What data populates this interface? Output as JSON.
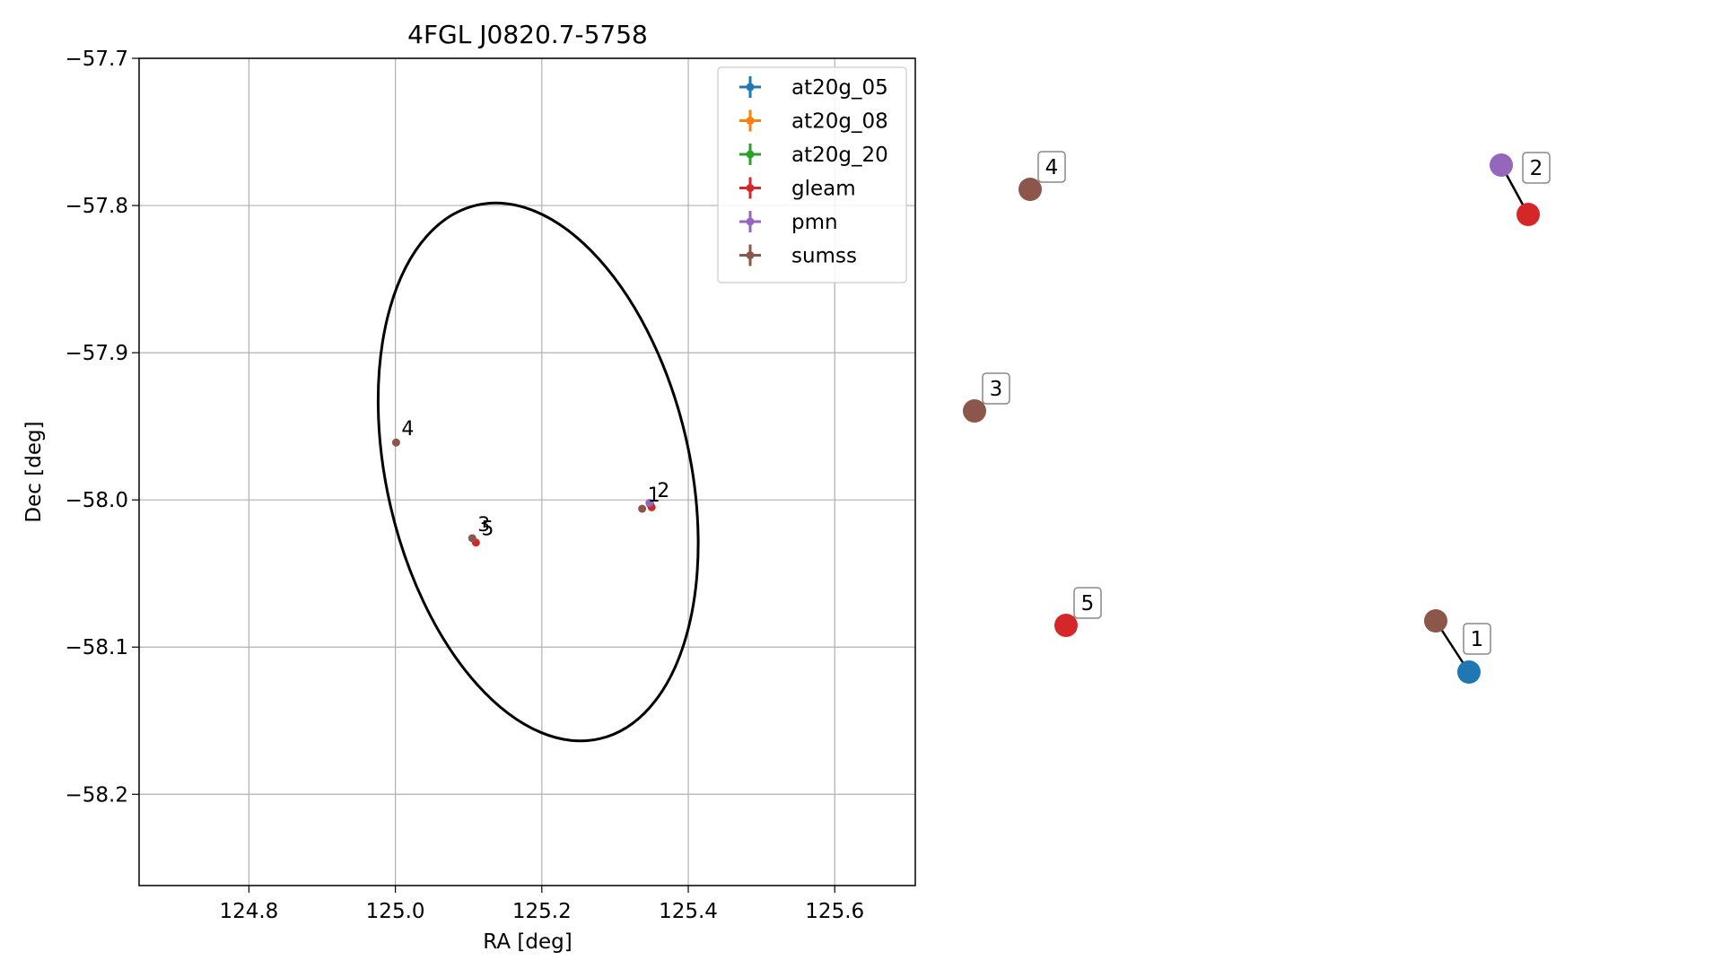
{
  "chart_data": [
    {
      "type": "scatter",
      "title": "4FGL J0820.7-5758",
      "xlabel": "RA [deg]",
      "ylabel": "Dec [deg]",
      "xlim": [
        124.65,
        125.71
      ],
      "ylim": [
        -58.262,
        -57.7
      ],
      "x_ticks": [
        124.8,
        125.0,
        125.2,
        125.4,
        125.6
      ],
      "x_tick_labels": [
        "124.8",
        "125.0",
        "125.2",
        "125.4",
        "125.6"
      ],
      "y_ticks": [
        -57.7,
        -57.8,
        -57.9,
        -58.0,
        -58.1,
        -58.2
      ],
      "y_tick_labels": [
        "−57.7",
        "−57.8",
        "−57.9",
        "−58.0",
        "−58.1",
        "−58.2"
      ],
      "grid": true,
      "legend_position": "top-right",
      "series": [
        {
          "name": "at20g_05",
          "color": "#1f77b4",
          "points": [
            {
              "x": 125.348,
              "y": -58.003
            }
          ]
        },
        {
          "name": "at20g_08",
          "color": "#ff7f0e",
          "points": []
        },
        {
          "name": "at20g_20",
          "color": "#2ca02c",
          "points": []
        },
        {
          "name": "gleam",
          "color": "#d62728",
          "points": [
            {
              "x": 125.35,
              "y": -58.005
            },
            {
              "x": 125.11,
              "y": -58.029
            }
          ]
        },
        {
          "name": "pmn",
          "color": "#9467bd",
          "points": [
            {
              "x": 125.347,
              "y": -58.002
            }
          ]
        },
        {
          "name": "sumss",
          "color": "#8c564b",
          "points": [
            {
              "x": 125.337,
              "y": -58.006
            },
            {
              "x": 125.105,
              "y": -58.026
            },
            {
              "x": 125.001,
              "y": -57.961
            }
          ]
        }
      ],
      "labels": [
        {
          "text": "1",
          "x": 125.337,
          "y": -58.006
        },
        {
          "text": "2",
          "x": 125.35,
          "y": -58.003
        },
        {
          "text": "3",
          "x": 125.105,
          "y": -58.026
        },
        {
          "text": "5",
          "x": 125.11,
          "y": -58.029
        },
        {
          "text": "4",
          "x": 125.001,
          "y": -57.961
        }
      ],
      "ellipse": {
        "center_ra": 125.195,
        "center_dec": -57.981,
        "semi_ra": 0.207,
        "semi_dec": 0.186,
        "tilt_deg": -13
      }
    },
    {
      "type": "diagram",
      "groups": [
        {
          "label": "1",
          "nodes": [
            {
              "series": "sumss",
              "color": "#8c564b"
            },
            {
              "series": "at20g_05",
              "color": "#1f77b4"
            }
          ]
        },
        {
          "label": "2",
          "nodes": [
            {
              "series": "pmn",
              "color": "#9467bd"
            },
            {
              "series": "gleam",
              "color": "#d62728"
            }
          ]
        },
        {
          "label": "3",
          "nodes": [
            {
              "series": "sumss",
              "color": "#8c564b"
            }
          ]
        },
        {
          "label": "4",
          "nodes": [
            {
              "series": "sumss",
              "color": "#8c564b"
            }
          ]
        },
        {
          "label": "5",
          "nodes": [
            {
              "series": "gleam",
              "color": "#d62728"
            }
          ]
        }
      ]
    }
  ]
}
